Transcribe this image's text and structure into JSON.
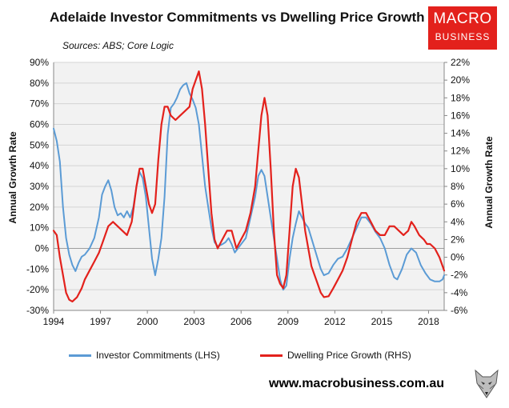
{
  "title": "Adelaide Investor Commitments vs Dwelling Price Growth",
  "source": "Sources: ABS; Core Logic",
  "logo": {
    "line1": "MACRO",
    "line2": "BUSINESS",
    "color": "#e3211c"
  },
  "website": "www.macrobusiness.com.au",
  "chart_data": {
    "type": "line",
    "title": "Adelaide Investor Commitments vs Dwelling Price Growth",
    "ylabel_left": "Annual Growth Rate",
    "ylabel_right": "Annual Growth Rate",
    "x_ticks": [
      "1994",
      "1997",
      "2000",
      "2003",
      "2006",
      "2009",
      "2012",
      "2015",
      "2018"
    ],
    "x_range": [
      1994,
      2019
    ],
    "y_left": {
      "range": [
        -30,
        90
      ],
      "step": 10,
      "ticks": [
        "90%",
        "80%",
        "70%",
        "60%",
        "50%",
        "40%",
        "30%",
        "20%",
        "10%",
        "0%",
        "-10%",
        "-20%",
        "-30%"
      ]
    },
    "y_right": {
      "range": [
        -6,
        22
      ],
      "step": 2,
      "ticks": [
        "22%",
        "20%",
        "18%",
        "16%",
        "14%",
        "12%",
        "10%",
        "8%",
        "6%",
        "4%",
        "2%",
        "0%",
        "-2%",
        "-4%",
        "-6%"
      ]
    },
    "grid": "horizontal",
    "legend_position": "bottom",
    "series": [
      {
        "name": "Investor Commitments (LHS)",
        "axis": "left",
        "color": "#5b9bd5",
        "points": [
          [
            1994.0,
            58
          ],
          [
            1994.2,
            52
          ],
          [
            1994.4,
            42
          ],
          [
            1994.6,
            20
          ],
          [
            1994.8,
            5
          ],
          [
            1995.0,
            -3
          ],
          [
            1995.2,
            -8
          ],
          [
            1995.4,
            -11
          ],
          [
            1995.6,
            -7
          ],
          [
            1995.8,
            -4
          ],
          [
            1996.0,
            -3
          ],
          [
            1996.3,
            0
          ],
          [
            1996.6,
            5
          ],
          [
            1996.9,
            15
          ],
          [
            1997.1,
            26
          ],
          [
            1997.3,
            30
          ],
          [
            1997.5,
            33
          ],
          [
            1997.7,
            28
          ],
          [
            1997.9,
            20
          ],
          [
            1998.1,
            16
          ],
          [
            1998.3,
            17
          ],
          [
            1998.5,
            15
          ],
          [
            1998.7,
            18
          ],
          [
            1998.9,
            15
          ],
          [
            1999.1,
            20
          ],
          [
            1999.3,
            30
          ],
          [
            1999.5,
            37
          ],
          [
            1999.7,
            34
          ],
          [
            1999.9,
            25
          ],
          [
            2000.1,
            10
          ],
          [
            2000.3,
            -5
          ],
          [
            2000.5,
            -13
          ],
          [
            2000.7,
            -5
          ],
          [
            2000.9,
            5
          ],
          [
            2001.1,
            25
          ],
          [
            2001.3,
            55
          ],
          [
            2001.5,
            68
          ],
          [
            2001.7,
            70
          ],
          [
            2001.9,
            73
          ],
          [
            2002.1,
            77
          ],
          [
            2002.3,
            79
          ],
          [
            2002.5,
            80
          ],
          [
            2002.7,
            75
          ],
          [
            2002.9,
            72
          ],
          [
            2003.1,
            68
          ],
          [
            2003.3,
            60
          ],
          [
            2003.5,
            45
          ],
          [
            2003.7,
            30
          ],
          [
            2003.9,
            20
          ],
          [
            2004.1,
            10
          ],
          [
            2004.3,
            3
          ],
          [
            2004.5,
            1
          ],
          [
            2004.8,
            2
          ],
          [
            2005.0,
            3
          ],
          [
            2005.2,
            5
          ],
          [
            2005.4,
            2
          ],
          [
            2005.6,
            -2
          ],
          [
            2005.8,
            0
          ],
          [
            2006.0,
            2
          ],
          [
            2006.3,
            5
          ],
          [
            2006.6,
            15
          ],
          [
            2006.9,
            25
          ],
          [
            2007.1,
            35
          ],
          [
            2007.3,
            38
          ],
          [
            2007.5,
            35
          ],
          [
            2007.7,
            25
          ],
          [
            2007.9,
            15
          ],
          [
            2008.1,
            5
          ],
          [
            2008.3,
            -5
          ],
          [
            2008.5,
            -15
          ],
          [
            2008.7,
            -20
          ],
          [
            2008.9,
            -18
          ],
          [
            2009.1,
            -5
          ],
          [
            2009.3,
            5
          ],
          [
            2009.5,
            12
          ],
          [
            2009.7,
            18
          ],
          [
            2009.9,
            15
          ],
          [
            2010.1,
            12
          ],
          [
            2010.3,
            10
          ],
          [
            2010.5,
            5
          ],
          [
            2010.7,
            0
          ],
          [
            2010.9,
            -5
          ],
          [
            2011.1,
            -10
          ],
          [
            2011.3,
            -13
          ],
          [
            2011.6,
            -12
          ],
          [
            2011.9,
            -8
          ],
          [
            2012.2,
            -5
          ],
          [
            2012.5,
            -4
          ],
          [
            2012.8,
            0
          ],
          [
            2013.1,
            5
          ],
          [
            2013.4,
            10
          ],
          [
            2013.7,
            15
          ],
          [
            2014.0,
            15
          ],
          [
            2014.3,
            12
          ],
          [
            2014.6,
            8
          ],
          [
            2014.9,
            5
          ],
          [
            2015.2,
            0
          ],
          [
            2015.5,
            -8
          ],
          [
            2015.8,
            -14
          ],
          [
            2016.0,
            -15
          ],
          [
            2016.3,
            -10
          ],
          [
            2016.6,
            -3
          ],
          [
            2016.9,
            0
          ],
          [
            2017.2,
            -2
          ],
          [
            2017.5,
            -8
          ],
          [
            2017.8,
            -12
          ],
          [
            2018.1,
            -15
          ],
          [
            2018.4,
            -16
          ],
          [
            2018.7,
            -16
          ],
          [
            2018.9,
            -15
          ],
          [
            2019.0,
            -13
          ]
        ]
      },
      {
        "name": "Dwelling Price Growth (RHS)",
        "axis": "right",
        "color": "#e3211c",
        "points": [
          [
            1994.0,
            3
          ],
          [
            1994.2,
            2.5
          ],
          [
            1994.4,
            0
          ],
          [
            1994.6,
            -2
          ],
          [
            1994.8,
            -4
          ],
          [
            1995.0,
            -4.8
          ],
          [
            1995.2,
            -5
          ],
          [
            1995.5,
            -4.5
          ],
          [
            1995.8,
            -3.5
          ],
          [
            1996.0,
            -2.5
          ],
          [
            1996.3,
            -1.5
          ],
          [
            1996.6,
            -0.5
          ],
          [
            1996.9,
            0.5
          ],
          [
            1997.2,
            2
          ],
          [
            1997.5,
            3.5
          ],
          [
            1997.8,
            4
          ],
          [
            1998.1,
            3.5
          ],
          [
            1998.4,
            3
          ],
          [
            1998.7,
            2.5
          ],
          [
            1999.0,
            4
          ],
          [
            1999.3,
            8
          ],
          [
            1999.5,
            10
          ],
          [
            1999.7,
            10
          ],
          [
            1999.9,
            8
          ],
          [
            2000.1,
            6
          ],
          [
            2000.3,
            5
          ],
          [
            2000.5,
            6
          ],
          [
            2000.7,
            11
          ],
          [
            2000.9,
            15
          ],
          [
            2001.1,
            17
          ],
          [
            2001.3,
            17
          ],
          [
            2001.5,
            16
          ],
          [
            2001.8,
            15.5
          ],
          [
            2002.1,
            16
          ],
          [
            2002.4,
            16.5
          ],
          [
            2002.7,
            17
          ],
          [
            2002.9,
            19
          ],
          [
            2003.1,
            20
          ],
          [
            2003.3,
            21
          ],
          [
            2003.5,
            19
          ],
          [
            2003.7,
            15
          ],
          [
            2003.9,
            10
          ],
          [
            2004.1,
            5
          ],
          [
            2004.3,
            2
          ],
          [
            2004.5,
            1
          ],
          [
            2004.8,
            2
          ],
          [
            2005.1,
            3
          ],
          [
            2005.4,
            3
          ],
          [
            2005.7,
            1
          ],
          [
            2006.0,
            2
          ],
          [
            2006.3,
            3
          ],
          [
            2006.6,
            5
          ],
          [
            2006.9,
            8
          ],
          [
            2007.1,
            12
          ],
          [
            2007.3,
            16
          ],
          [
            2007.5,
            18
          ],
          [
            2007.7,
            16
          ],
          [
            2007.9,
            10
          ],
          [
            2008.1,
            3
          ],
          [
            2008.3,
            -2
          ],
          [
            2008.5,
            -3
          ],
          [
            2008.7,
            -3.5
          ],
          [
            2008.9,
            -2
          ],
          [
            2009.1,
            3
          ],
          [
            2009.3,
            8
          ],
          [
            2009.5,
            10
          ],
          [
            2009.7,
            9
          ],
          [
            2009.9,
            6
          ],
          [
            2010.1,
            3
          ],
          [
            2010.3,
            1
          ],
          [
            2010.5,
            -1
          ],
          [
            2010.7,
            -2
          ],
          [
            2010.9,
            -3
          ],
          [
            2011.1,
            -4
          ],
          [
            2011.3,
            -4.5
          ],
          [
            2011.6,
            -4.4
          ],
          [
            2011.9,
            -3.5
          ],
          [
            2012.2,
            -2.5
          ],
          [
            2012.5,
            -1.5
          ],
          [
            2012.8,
            0
          ],
          [
            2013.1,
            2
          ],
          [
            2013.4,
            4
          ],
          [
            2013.7,
            5
          ],
          [
            2014.0,
            5
          ],
          [
            2014.3,
            4
          ],
          [
            2014.6,
            3
          ],
          [
            2014.9,
            2.5
          ],
          [
            2015.2,
            2.5
          ],
          [
            2015.5,
            3.5
          ],
          [
            2015.8,
            3.5
          ],
          [
            2016.1,
            3
          ],
          [
            2016.4,
            2.5
          ],
          [
            2016.7,
            3
          ],
          [
            2016.9,
            4
          ],
          [
            2017.1,
            3.5
          ],
          [
            2017.4,
            2.5
          ],
          [
            2017.7,
            2
          ],
          [
            2017.9,
            1.5
          ],
          [
            2018.1,
            1.5
          ],
          [
            2018.4,
            1
          ],
          [
            2018.7,
            0
          ],
          [
            2018.9,
            -1
          ],
          [
            2019.0,
            -1.5
          ]
        ]
      }
    ]
  }
}
